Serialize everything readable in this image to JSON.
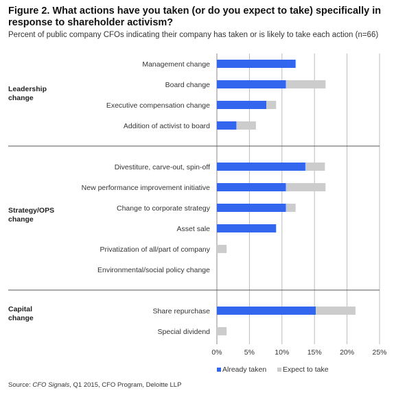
{
  "title": "Figure 2. What actions have you taken (or do you expect to take) specifically in response to shareholder activism?",
  "subtitle": "Percent of public company CFOs indicating their company has taken or is likely to take each action (n=66)",
  "source": {
    "prefix": "Source: ",
    "italic": "CFO Signals",
    "suffix": ", Q1 2015, CFO Program, Deloitte LLP"
  },
  "colors": {
    "taken": "#3366ee",
    "expect": "#cccccc",
    "grid": "#bbbbbb",
    "divider": "#555555"
  },
  "chart_data": {
    "type": "bar",
    "orientation": "horizontal",
    "stacked": true,
    "xlim": [
      0,
      25
    ],
    "xticks": [
      "0%",
      "5%",
      "10%",
      "15%",
      "20%",
      "25%"
    ],
    "grid": true,
    "legend_position": "bottom",
    "groups": [
      {
        "label": "Leadership change",
        "label_lines": [
          "Leadership",
          "change"
        ],
        "categories": [
          "Management change",
          "Board change",
          "Executive compensation change",
          "Addition of activist to board"
        ]
      },
      {
        "label": "Strategy/OPS change",
        "label_lines": [
          "Strategy/OPS",
          "change"
        ],
        "categories": [
          "Divestiture, carve-out, spin-off",
          "New performance improvement initiative",
          "Change to corporate strategy",
          "Asset sale",
          "Privatization of all/part of company",
          "Environmental/social policy change"
        ]
      },
      {
        "label": "Capital change",
        "label_lines": [
          "Capital",
          "change"
        ],
        "categories": [
          "Share repurchase",
          "Special dividend"
        ]
      }
    ],
    "series": [
      {
        "name": "Already taken",
        "values": [
          12.1,
          10.6,
          7.6,
          3.0,
          13.6,
          10.6,
          10.6,
          9.1,
          0,
          0,
          15.2,
          0
        ]
      },
      {
        "name": "Expect to take",
        "values": [
          0,
          6.1,
          1.5,
          3.0,
          3.0,
          6.1,
          1.5,
          0,
          1.5,
          0,
          6.1,
          1.5
        ]
      }
    ]
  }
}
